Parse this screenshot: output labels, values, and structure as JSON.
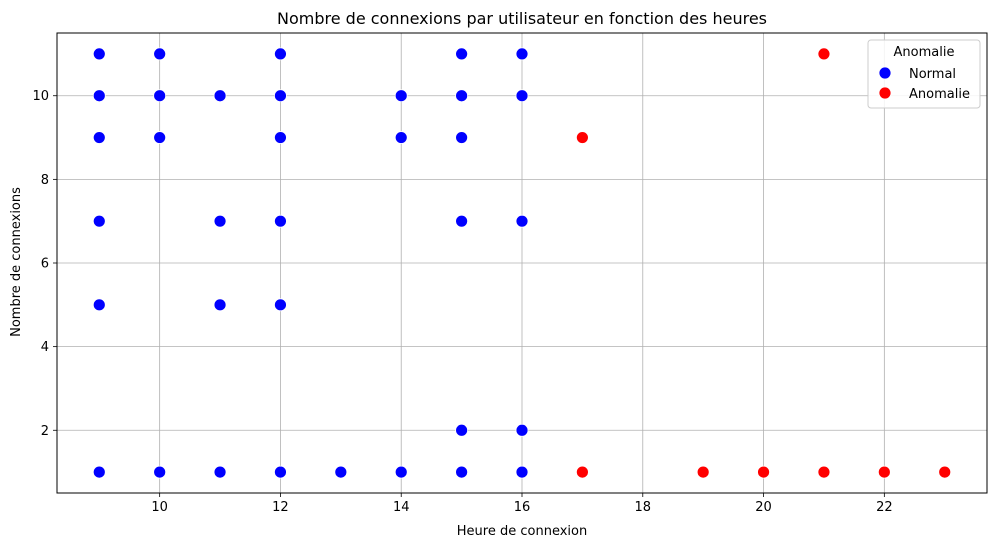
{
  "chart_data": {
    "type": "scatter",
    "title": "Nombre de connexions par utilisateur en fonction des heures",
    "xlabel": "Heure de connexion",
    "ylabel": "Nombre de connexions",
    "xlim": [
      8.3,
      23.7
    ],
    "ylim": [
      0.5,
      11.5
    ],
    "xticks": [
      10,
      12,
      14,
      16,
      18,
      20,
      22
    ],
    "yticks": [
      2,
      4,
      6,
      8,
      10
    ],
    "grid": true,
    "legend": {
      "title": "Anomalie",
      "position": "top-right"
    },
    "series": [
      {
        "name": "Normal",
        "color": "#0000ff",
        "points": [
          [
            9,
            11
          ],
          [
            9,
            10
          ],
          [
            9,
            9
          ],
          [
            9,
            7
          ],
          [
            9,
            5
          ],
          [
            9,
            1
          ],
          [
            10,
            11
          ],
          [
            10,
            10
          ],
          [
            10,
            9
          ],
          [
            10,
            1
          ],
          [
            11,
            10
          ],
          [
            11,
            7
          ],
          [
            11,
            5
          ],
          [
            11,
            1
          ],
          [
            12,
            11
          ],
          [
            12,
            10
          ],
          [
            12,
            9
          ],
          [
            12,
            7
          ],
          [
            12,
            5
          ],
          [
            12,
            1
          ],
          [
            13,
            1
          ],
          [
            14,
            10
          ],
          [
            14,
            9
          ],
          [
            14,
            1
          ],
          [
            15,
            11
          ],
          [
            15,
            10
          ],
          [
            15,
            9
          ],
          [
            15,
            7
          ],
          [
            15,
            2
          ],
          [
            15,
            1
          ],
          [
            16,
            11
          ],
          [
            16,
            10
          ],
          [
            16,
            7
          ],
          [
            16,
            2
          ],
          [
            16,
            1
          ]
        ]
      },
      {
        "name": "Anomalie",
        "color": "#ff0000",
        "points": [
          [
            17,
            9
          ],
          [
            17,
            1
          ],
          [
            19,
            1
          ],
          [
            20,
            1
          ],
          [
            21,
            11
          ],
          [
            21,
            1
          ],
          [
            22,
            1
          ],
          [
            23,
            1
          ]
        ]
      }
    ]
  }
}
